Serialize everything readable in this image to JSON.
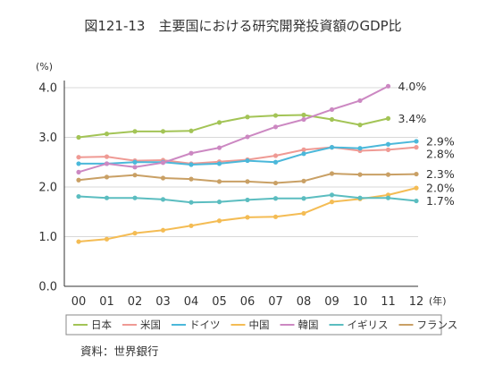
{
  "chart_data": {
    "type": "line",
    "title": "図121-13　主要国における研究開発投資額のGDP比",
    "y_unit_label": "(%)",
    "x_unit_label": "(年)",
    "source": "資料：世界銀行",
    "ylim": [
      0,
      4
    ],
    "yticks": [
      "0.0",
      "1.0",
      "2.0",
      "3.0",
      "4.0"
    ],
    "ytick_values": [
      0,
      1,
      2,
      3,
      4
    ],
    "categories": [
      "00",
      "01",
      "02",
      "03",
      "04",
      "05",
      "06",
      "07",
      "08",
      "09",
      "10",
      "11",
      "12"
    ],
    "grid": true,
    "legend_position": "bottom",
    "series": [
      {
        "name": "日本",
        "color": "#a3c456",
        "values": [
          3.0,
          3.07,
          3.12,
          3.12,
          3.13,
          3.3,
          3.41,
          3.44,
          3.45,
          3.36,
          3.25,
          3.38,
          null
        ],
        "end_label": "3.4%"
      },
      {
        "name": "米国",
        "color": "#ef9a94",
        "values": [
          2.6,
          2.61,
          2.53,
          2.54,
          2.47,
          2.51,
          2.55,
          2.63,
          2.75,
          2.8,
          2.73,
          2.75,
          2.8
        ],
        "end_label": "2.8%"
      },
      {
        "name": "ドイツ",
        "color": "#4bb8da",
        "values": [
          2.47,
          2.47,
          2.5,
          2.5,
          2.45,
          2.47,
          2.53,
          2.5,
          2.67,
          2.8,
          2.78,
          2.86,
          2.92
        ],
        "end_label": "2.9%"
      },
      {
        "name": "中国",
        "color": "#f4bc54",
        "values": [
          0.9,
          0.95,
          1.07,
          1.13,
          1.22,
          1.32,
          1.39,
          1.4,
          1.47,
          1.7,
          1.76,
          1.84,
          1.98
        ],
        "end_label": "2.0%"
      },
      {
        "name": "韓国",
        "color": "#cc88c2",
        "values": [
          2.3,
          2.47,
          2.4,
          2.49,
          2.68,
          2.79,
          3.01,
          3.21,
          3.36,
          3.56,
          3.74,
          4.03,
          null
        ],
        "end_label": "4.0%"
      },
      {
        "name": "イギリス",
        "color": "#5bbdc0",
        "values": [
          1.81,
          1.78,
          1.78,
          1.75,
          1.69,
          1.7,
          1.74,
          1.77,
          1.77,
          1.84,
          1.78,
          1.78,
          1.72
        ],
        "end_label": "1.7%"
      },
      {
        "name": "フランス",
        "color": "#c9a065",
        "values": [
          2.14,
          2.2,
          2.24,
          2.18,
          2.16,
          2.11,
          2.11,
          2.08,
          2.12,
          2.27,
          2.25,
          2.25,
          2.26
        ],
        "end_label": "2.3%"
      }
    ]
  }
}
